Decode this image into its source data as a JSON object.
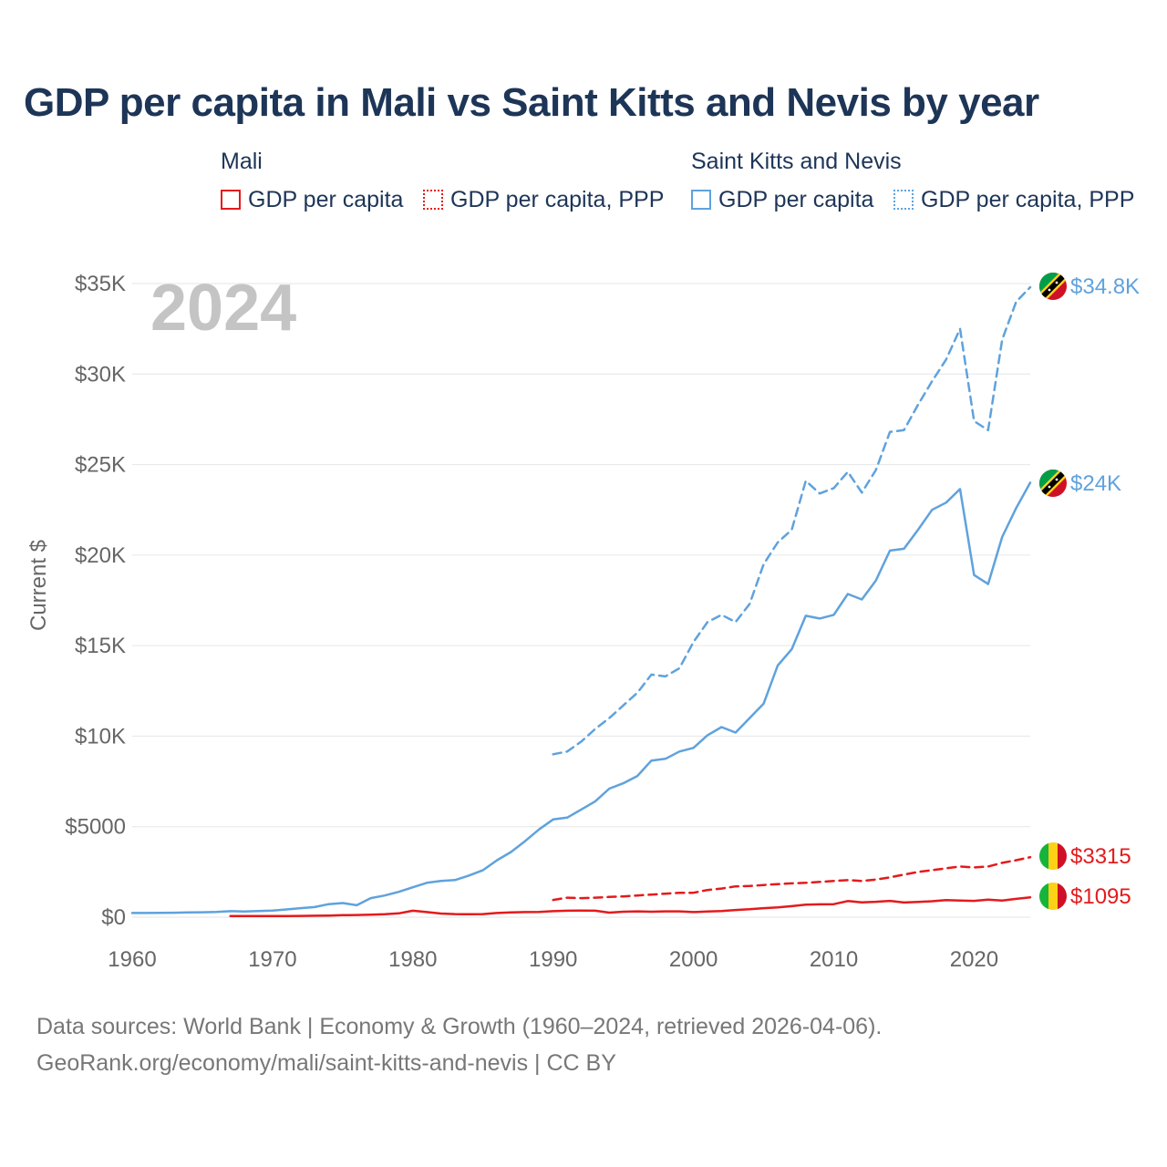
{
  "title": "GDP per capita in Mali vs Saint Kitts and Nevis by year",
  "legend": {
    "groups": [
      {
        "name": "Mali",
        "items": [
          "GDP per capita",
          "GDP per capita, PPP"
        ]
      },
      {
        "name": "Saint Kitts and Nevis",
        "items": [
          "GDP per capita",
          "GDP per capita, PPP"
        ]
      }
    ]
  },
  "year_label": "2024",
  "footer": {
    "line1": "Data sources: World Bank | Economy & Growth (1960–2024, retrieved 2026-04-06).",
    "line2": "GeoRank.org/economy/mali/saint-kitts-and-nevis | CC BY"
  },
  "colors": {
    "mali": "#e41a1c",
    "skn": "#5fa2dd",
    "grid": "#e6e6e6",
    "axis_text": "#666666",
    "year": "#c4c4c4"
  },
  "chart_data": {
    "type": "line",
    "title": "GDP per capita in Mali vs Saint Kitts and Nevis by year",
    "xlabel": "",
    "ylabel": "Current $",
    "xlim": [
      1960,
      2024
    ],
    "ylim": [
      0,
      35000
    ],
    "grid": true,
    "x_ticks": [
      1960,
      1970,
      1980,
      1990,
      2000,
      2010,
      2020
    ],
    "x_tick_labels": [
      "1960",
      "1970",
      "1980",
      "1990",
      "2000",
      "2010",
      "2020"
    ],
    "y_ticks": [
      0,
      5000,
      10000,
      15000,
      20000,
      25000,
      30000,
      35000
    ],
    "y_tick_labels": [
      "$0",
      "$5000",
      "$10K",
      "$15K",
      "$20K",
      "$25K",
      "$30K",
      "$35K"
    ],
    "series": [
      {
        "name": "Saint Kitts and Nevis — GDP per capita, PPP",
        "country": "skn",
        "style": "dashed",
        "end_label": "$34.8K",
        "x": [
          1990,
          1991,
          1992,
          1993,
          1994,
          1995,
          1996,
          1997,
          1998,
          1999,
          2000,
          2001,
          2002,
          2003,
          2004,
          2005,
          2006,
          2007,
          2008,
          2009,
          2010,
          2011,
          2012,
          2013,
          2014,
          2015,
          2016,
          2017,
          2018,
          2019,
          2020,
          2021,
          2022,
          2023,
          2024
        ],
        "values": [
          9000,
          9150,
          9700,
          10400,
          11000,
          11700,
          12400,
          13400,
          13300,
          13750,
          15200,
          16300,
          16700,
          16300,
          17300,
          19500,
          20700,
          21400,
          24100,
          23400,
          23700,
          24600,
          23450,
          24700,
          26800,
          26900,
          28300,
          29600,
          30800,
          32500,
          27400,
          26900,
          31900,
          34000,
          34800
        ]
      },
      {
        "name": "Saint Kitts and Nevis — GDP per capita",
        "country": "skn",
        "style": "solid",
        "end_label": "$24K",
        "x": [
          1960,
          1961,
          1962,
          1963,
          1964,
          1965,
          1966,
          1967,
          1968,
          1969,
          1970,
          1971,
          1972,
          1973,
          1974,
          1975,
          1976,
          1977,
          1978,
          1979,
          1980,
          1981,
          1982,
          1983,
          1984,
          1985,
          1986,
          1987,
          1988,
          1989,
          1990,
          1991,
          1992,
          1993,
          1994,
          1995,
          1996,
          1997,
          1998,
          1999,
          2000,
          2001,
          2002,
          2003,
          2004,
          2005,
          2006,
          2007,
          2008,
          2009,
          2010,
          2011,
          2012,
          2013,
          2014,
          2015,
          2016,
          2017,
          2018,
          2019,
          2020,
          2021,
          2022,
          2023,
          2024
        ],
        "values": [
          230,
          230,
          235,
          245,
          260,
          270,
          290,
          330,
          310,
          340,
          370,
          430,
          500,
          560,
          720,
          780,
          660,
          1050,
          1200,
          1400,
          1650,
          1900,
          2000,
          2050,
          2300,
          2600,
          3150,
          3600,
          4200,
          4850,
          5400,
          5500,
          5950,
          6400,
          7100,
          7400,
          7800,
          8650,
          8750,
          9150,
          9350,
          10050,
          10500,
          10200,
          11000,
          11800,
          13900,
          14800,
          16650,
          16500,
          16700,
          17850,
          17550,
          18600,
          20250,
          20350,
          21400,
          22500,
          22900,
          23650,
          18900,
          18400,
          21000,
          22600,
          24000
        ]
      },
      {
        "name": "Mali — GDP per capita, PPP",
        "country": "mali",
        "style": "dashed",
        "end_label": "$3315",
        "x": [
          1990,
          1991,
          1992,
          1993,
          1994,
          1995,
          1996,
          1997,
          1998,
          1999,
          2000,
          2001,
          2002,
          2003,
          2004,
          2005,
          2006,
          2007,
          2008,
          2009,
          2010,
          2011,
          2012,
          2013,
          2014,
          2015,
          2016,
          2017,
          2018,
          2019,
          2020,
          2021,
          2022,
          2023,
          2024
        ],
        "values": [
          950,
          1080,
          1050,
          1080,
          1120,
          1150,
          1200,
          1250,
          1300,
          1350,
          1350,
          1500,
          1580,
          1700,
          1720,
          1780,
          1830,
          1870,
          1900,
          1950,
          2000,
          2050,
          2000,
          2080,
          2200,
          2350,
          2500,
          2600,
          2700,
          2800,
          2750,
          2800,
          3000,
          3150,
          3315
        ]
      },
      {
        "name": "Mali — GDP per capita",
        "country": "mali",
        "style": "solid",
        "end_label": "$1095",
        "x": [
          1967,
          1968,
          1969,
          1970,
          1971,
          1972,
          1973,
          1974,
          1975,
          1976,
          1977,
          1978,
          1979,
          1980,
          1981,
          1982,
          1983,
          1984,
          1985,
          1986,
          1987,
          1988,
          1989,
          1990,
          1991,
          1992,
          1993,
          1994,
          1995,
          1996,
          1997,
          1998,
          1999,
          2000,
          2001,
          2002,
          2003,
          2004,
          2005,
          2006,
          2007,
          2008,
          2009,
          2010,
          2011,
          2012,
          2013,
          2014,
          2015,
          2016,
          2017,
          2018,
          2019,
          2020,
          2021,
          2022,
          2023,
          2024
        ],
        "values": [
          60,
          60,
          60,
          60,
          65,
          70,
          80,
          90,
          110,
          120,
          140,
          160,
          210,
          360,
          280,
          200,
          170,
          160,
          170,
          230,
          260,
          280,
          290,
          330,
          360,
          370,
          360,
          250,
          300,
          320,
          300,
          320,
          320,
          280,
          310,
          340,
          400,
          440,
          500,
          540,
          610,
          690,
          710,
          720,
          890,
          820,
          850,
          900,
          810,
          840,
          880,
          940,
          920,
          900,
          970,
          920,
          1010,
          1095
        ]
      }
    ]
  }
}
